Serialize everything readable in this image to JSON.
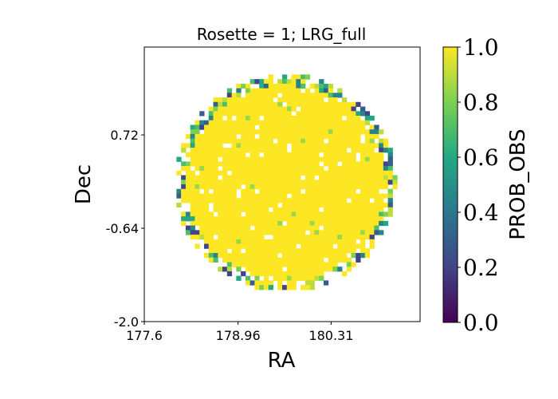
{
  "chart_data": {
    "type": "heatmap",
    "title": "Rosette = 1; LRG_full",
    "xlabel": "RA",
    "ylabel": "Dec",
    "xlim": [
      177.6,
      181.6
    ],
    "ylim": [
      -2.0,
      2.0
    ],
    "xticks": [
      177.6,
      178.96,
      180.31
    ],
    "xtick_labels": [
      "177.6",
      "178.96",
      "180.31"
    ],
    "yticks": [
      -2.0,
      -0.64,
      0.72
    ],
    "ytick_labels": [
      "-2.0",
      "-0.64",
      "0.72"
    ],
    "footprint": {
      "shape": "circle",
      "center": [
        179.65,
        0.02
      ],
      "radius_ra": 1.6,
      "radius_dec": 1.58
    },
    "bulk_value": 1.0,
    "edge_values": [
      0.2,
      0.3,
      0.45,
      0.6,
      0.7,
      0.8,
      0.9
    ],
    "empty_pixel_fraction": 0.05,
    "colorbar": {
      "label": "PROB_OBS",
      "range": [
        0.0,
        1.0
      ],
      "ticks": [
        0.0,
        0.2,
        0.4,
        0.6,
        0.8,
        1.0
      ],
      "tick_labels": [
        "0.0",
        "0.2",
        "0.4",
        "0.6",
        "0.8",
        "1.0"
      ],
      "colormap": "viridis",
      "colors": [
        "#440154",
        "#414487",
        "#2a788e",
        "#22a884",
        "#7ad151",
        "#fde725"
      ]
    }
  }
}
